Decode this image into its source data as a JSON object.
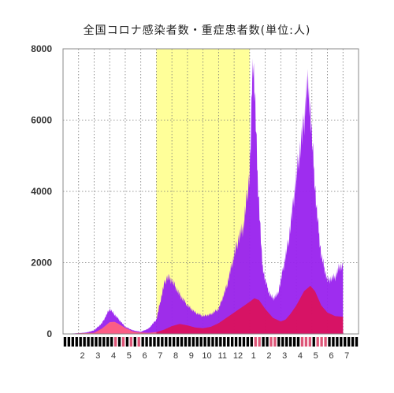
{
  "chart_data": {
    "type": "bar",
    "title": "全国コロナ感染者数・重症患者数(単位:人)",
    "xlabel": "",
    "ylabel": "",
    "ylim": [
      0,
      8000
    ],
    "yticks": [
      "0",
      "2000",
      "4000",
      "6000",
      "8000"
    ],
    "month_labels": [
      "2",
      "3",
      "4",
      "5",
      "6",
      "7",
      "8",
      "9",
      "10",
      "11",
      "12",
      "1",
      "2",
      "3",
      "4",
      "5",
      "6",
      "7"
    ],
    "highlight_region": {
      "from_month": "7",
      "to_month": "12",
      "color": "#ffff99"
    },
    "month_bar_colors": [
      "#000000",
      "#dd5577"
    ],
    "series": [
      {
        "color": "#9922ee",
        "monthly_points": [
          [
            0,
            0
          ],
          [
            0.5,
            10
          ],
          [
            1,
            20
          ],
          [
            1.5,
            40
          ],
          [
            2,
            100
          ],
          [
            2.5,
            300
          ],
          [
            3,
            700
          ],
          [
            3.3,
            550
          ],
          [
            3.5,
            450
          ],
          [
            4,
            200
          ],
          [
            4.5,
            100
          ],
          [
            5,
            60
          ],
          [
            5.5,
            150
          ],
          [
            6,
            400
          ],
          [
            6.3,
            1000
          ],
          [
            6.5,
            1400
          ],
          [
            6.7,
            1600
          ],
          [
            7,
            1500
          ],
          [
            7.5,
            1100
          ],
          [
            8,
            800
          ],
          [
            8.5,
            600
          ],
          [
            9,
            500
          ],
          [
            9.5,
            550
          ],
          [
            10,
            700
          ],
          [
            10.5,
            1300
          ],
          [
            11,
            2200
          ],
          [
            11.3,
            2700
          ],
          [
            11.6,
            3000
          ],
          [
            12,
            4500
          ],
          [
            12.1,
            5800
          ],
          [
            12.2,
            7900
          ],
          [
            12.35,
            6500
          ],
          [
            12.5,
            4500
          ],
          [
            12.8,
            2000
          ],
          [
            13,
            1500
          ],
          [
            13.3,
            1100
          ],
          [
            13.5,
            1000
          ],
          [
            13.8,
            1100
          ],
          [
            14,
            1500
          ],
          [
            14.5,
            2600
          ],
          [
            15,
            4400
          ],
          [
            15.5,
            6000
          ],
          [
            15.7,
            7000
          ],
          [
            15.85,
            6600
          ],
          [
            16,
            5500
          ],
          [
            16.3,
            3500
          ],
          [
            16.6,
            2200
          ],
          [
            17,
            1500
          ],
          [
            17.5,
            1600
          ],
          [
            17.8,
            1900
          ],
          [
            18,
            1900
          ]
        ]
      },
      {
        "color": "#dd1155",
        "monthly_points": [
          [
            0,
            0
          ],
          [
            2,
            30
          ],
          [
            2.5,
            150
          ],
          [
            3,
            300
          ],
          [
            3.3,
            330
          ],
          [
            3.5,
            280
          ],
          [
            4,
            150
          ],
          [
            4.5,
            60
          ],
          [
            5,
            40
          ],
          [
            5.5,
            30
          ],
          [
            6,
            50
          ],
          [
            6.5,
            120
          ],
          [
            7,
            220
          ],
          [
            7.5,
            280
          ],
          [
            8,
            240
          ],
          [
            8.5,
            180
          ],
          [
            9,
            160
          ],
          [
            9.5,
            200
          ],
          [
            10,
            300
          ],
          [
            10.5,
            450
          ],
          [
            11,
            600
          ],
          [
            11.5,
            750
          ],
          [
            12,
            900
          ],
          [
            12.3,
            1000
          ],
          [
            12.6,
            950
          ],
          [
            13,
            700
          ],
          [
            13.5,
            450
          ],
          [
            14,
            350
          ],
          [
            14.3,
            400
          ],
          [
            14.6,
            550
          ],
          [
            15,
            800
          ],
          [
            15.5,
            1200
          ],
          [
            15.9,
            1350
          ],
          [
            16.2,
            1200
          ],
          [
            16.6,
            800
          ],
          [
            17,
            600
          ],
          [
            17.5,
            500
          ],
          [
            18,
            480
          ]
        ]
      },
      {
        "color": "#ff6688",
        "monthly_points": [
          [
            0,
            0
          ],
          [
            2,
            30
          ],
          [
            2.5,
            150
          ],
          [
            3,
            330
          ],
          [
            3.3,
            340
          ],
          [
            3.5,
            300
          ],
          [
            4,
            170
          ],
          [
            4.5,
            70
          ],
          [
            5,
            40
          ],
          [
            5.5,
            30
          ],
          [
            6,
            50
          ]
        ]
      }
    ]
  }
}
